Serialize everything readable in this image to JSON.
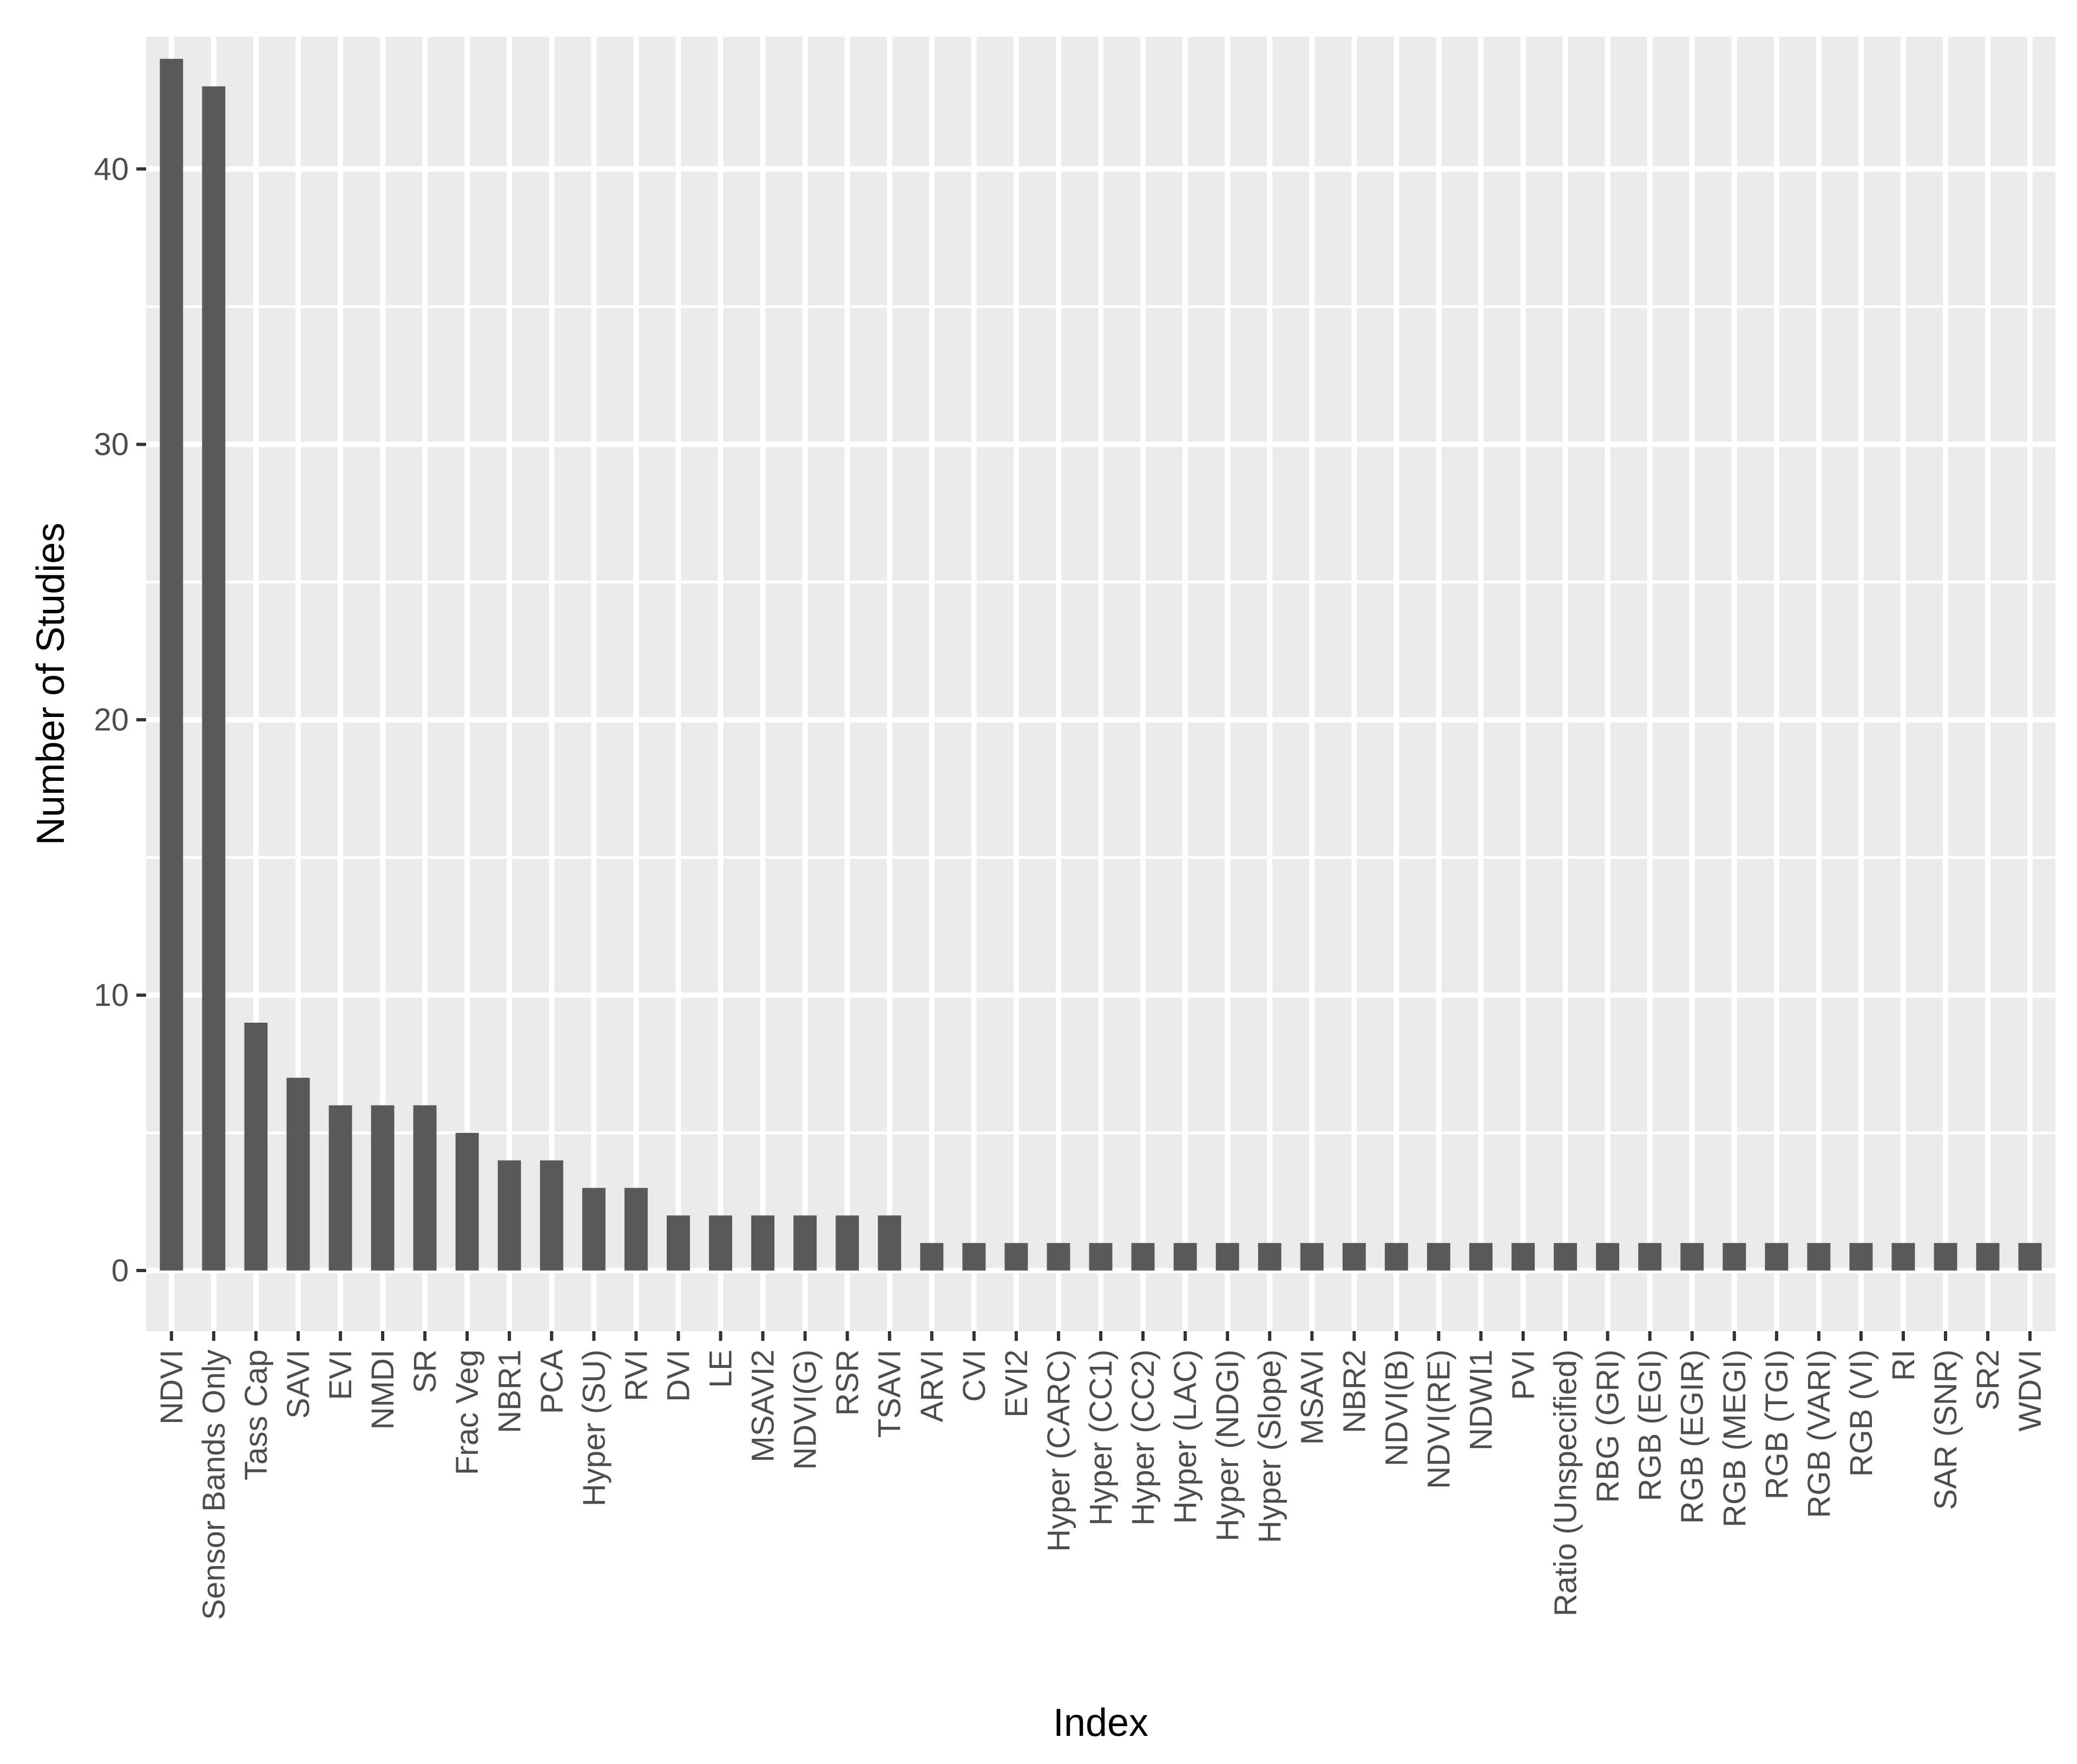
{
  "chart_data": {
    "type": "bar",
    "title": "",
    "xlabel": "Index",
    "ylabel": "Number of Studies",
    "ylim": [
      -2.2,
      44.8
    ],
    "yticks": [
      0,
      10,
      20,
      30,
      40
    ],
    "grid": true,
    "legend": "none",
    "bar_color": "#595959",
    "panel_color": "#ebebeb",
    "grid_color": "#ffffff",
    "categories": [
      "NDVI",
      "Sensor Bands Only",
      "Tass Cap",
      "SAVI",
      "EVI",
      "NMDI",
      "SR",
      "Frac Veg",
      "NBR1",
      "PCA",
      "Hyper (SU)",
      "RVI",
      "DVI",
      "LE",
      "MSAVI2",
      "NDVI(G)",
      "RSR",
      "TSAVI",
      "ARVI",
      "CVI",
      "EVI2",
      "Hyper (CARC)",
      "Hyper (CC1)",
      "Hyper (CC2)",
      "Hyper (LAC)",
      "Hyper (NDGI)",
      "Hyper (Slope)",
      "MSAVI",
      "NBR2",
      "NDVI(B)",
      "NDVI(RE)",
      "NDWI1",
      "PVI",
      "Ratio (Unspecified)",
      "RBG (GRI)",
      "RGB (EGI)",
      "RGB (EGIR)",
      "RGB (MEGI)",
      "RGB (TGI)",
      "RGB (VARI)",
      "RGB (VI)",
      "RI",
      "SAR (SNR)",
      "SR2",
      "WDVI"
    ],
    "values": [
      44,
      43,
      9,
      7,
      6,
      6,
      6,
      5,
      4,
      4,
      3,
      3,
      2,
      2,
      2,
      2,
      2,
      2,
      1,
      1,
      1,
      1,
      1,
      1,
      1,
      1,
      1,
      1,
      1,
      1,
      1,
      1,
      1,
      1,
      1,
      1,
      1,
      1,
      1,
      1,
      1,
      1,
      1,
      1,
      1
    ]
  }
}
